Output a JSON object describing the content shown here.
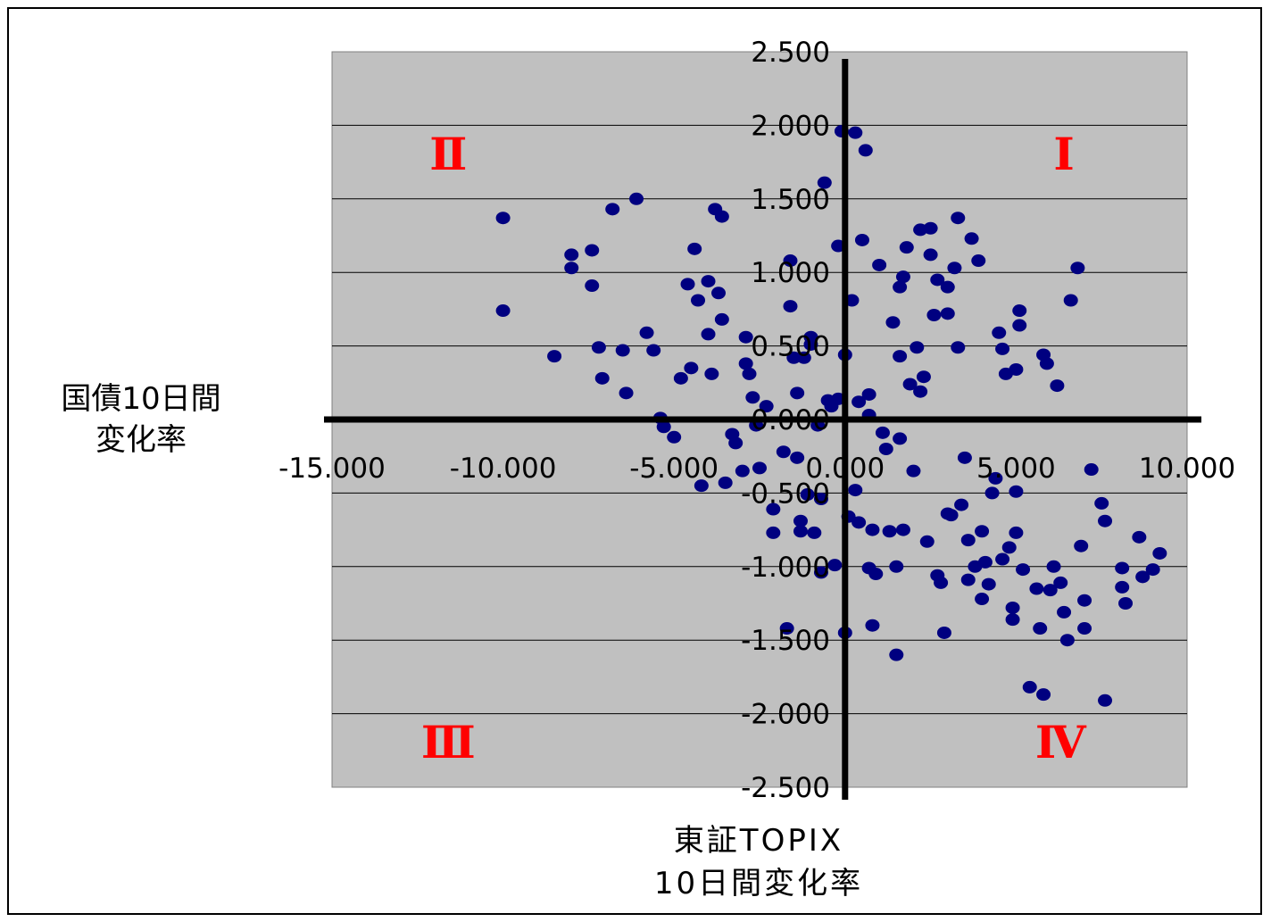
{
  "chart_data": {
    "type": "scatter",
    "title": "",
    "xlabel": "東証TOPIX\n10日間変化率",
    "xlabel_lines": [
      "東証TOPIX",
      "10日間変化率"
    ],
    "ylabel_lines": [
      "国債10日間",
      "変化率"
    ],
    "xlim": [
      -15,
      10
    ],
    "ylim": [
      -2.5,
      2.5
    ],
    "x_ticks": [
      "-15.000",
      "-10.000",
      "-5.000",
      "0.000",
      "5.000",
      "10.000"
    ],
    "y_ticks": [
      "2.500",
      "2.000",
      "1.500",
      "1.000",
      "0.500",
      "0.000",
      "-0.500",
      "-1.000",
      "-1.500",
      "-2.000",
      "-2.500"
    ],
    "grid": "horizontal",
    "plot_background": "#c0c0c0",
    "marker_color": "#000080",
    "quadrant_labels": [
      {
        "text": "Ⅰ",
        "x": 6.4,
        "y": 1.7
      },
      {
        "text": "Ⅱ",
        "x": -11.6,
        "y": 1.7
      },
      {
        "text": "Ⅲ",
        "x": -11.6,
        "y": -2.3
      },
      {
        "text": "Ⅳ",
        "x": 6.3,
        "y": -2.3
      }
    ],
    "quadrant_color": "#ff0000",
    "series": [
      {
        "points": [
          [
            -10.0,
            1.37
          ],
          [
            -10.0,
            0.74
          ],
          [
            -8.5,
            0.43
          ],
          [
            -8.0,
            1.12
          ],
          [
            -8.0,
            1.03
          ],
          [
            -7.4,
            1.15
          ],
          [
            -7.4,
            0.91
          ],
          [
            -7.2,
            0.49
          ],
          [
            -7.1,
            0.28
          ],
          [
            -6.8,
            1.43
          ],
          [
            -6.5,
            0.47
          ],
          [
            -6.4,
            0.18
          ],
          [
            -6.1,
            1.5
          ],
          [
            -5.8,
            0.59
          ],
          [
            -5.6,
            0.47
          ],
          [
            -5.4,
            0.01
          ],
          [
            -5.3,
            -0.05
          ],
          [
            -5.0,
            -0.12
          ],
          [
            -4.8,
            0.28
          ],
          [
            -4.6,
            0.92
          ],
          [
            -4.5,
            0.35
          ],
          [
            -4.4,
            1.16
          ],
          [
            -4.3,
            0.81
          ],
          [
            -4.2,
            -0.45
          ],
          [
            -4.0,
            0.58
          ],
          [
            -4.0,
            0.94
          ],
          [
            -3.9,
            0.31
          ],
          [
            -3.8,
            1.43
          ],
          [
            -3.6,
            1.38
          ],
          [
            -3.7,
            0.86
          ],
          [
            -3.6,
            0.68
          ],
          [
            -3.5,
            -0.43
          ],
          [
            -3.3,
            -0.1
          ],
          [
            -3.2,
            -0.16
          ],
          [
            -3.0,
            -0.35
          ],
          [
            -2.9,
            0.56
          ],
          [
            -2.9,
            0.38
          ],
          [
            -2.8,
            0.31
          ],
          [
            -2.7,
            0.15
          ],
          [
            -2.6,
            -0.04
          ],
          [
            -2.5,
            -0.33
          ],
          [
            -2.3,
            0.09
          ],
          [
            -2.1,
            -0.61
          ],
          [
            -2.1,
            -0.77
          ],
          [
            -1.8,
            -0.22
          ],
          [
            -1.7,
            -1.42
          ],
          [
            -1.6,
            1.08
          ],
          [
            -1.6,
            0.77
          ],
          [
            -1.5,
            0.42
          ],
          [
            -1.4,
            0.18
          ],
          [
            -1.4,
            -0.26
          ],
          [
            -1.3,
            -0.69
          ],
          [
            -1.3,
            -0.76
          ],
          [
            -1.2,
            0.42
          ],
          [
            -1.1,
            -0.51
          ],
          [
            -1.0,
            0.56
          ],
          [
            -1.0,
            0.51
          ],
          [
            -0.9,
            -0.77
          ],
          [
            -0.8,
            -0.04
          ],
          [
            -0.7,
            -1.04
          ],
          [
            -0.7,
            -0.54
          ],
          [
            -0.6,
            1.61
          ],
          [
            -0.5,
            0.13
          ],
          [
            -0.4,
            0.09
          ],
          [
            -0.3,
            -0.99
          ],
          [
            -0.2,
            1.18
          ],
          [
            -0.2,
            0.14
          ],
          [
            -0.1,
            1.96
          ],
          [
            0.0,
            -1.45
          ],
          [
            0.0,
            0.44
          ],
          [
            0.1,
            -0.66
          ],
          [
            0.2,
            0.81
          ],
          [
            0.3,
            1.95
          ],
          [
            0.3,
            -0.48
          ],
          [
            0.4,
            0.12
          ],
          [
            0.4,
            -0.7
          ],
          [
            0.5,
            1.22
          ],
          [
            0.6,
            1.83
          ],
          [
            0.7,
            0.17
          ],
          [
            0.7,
            0.03
          ],
          [
            0.7,
            -1.01
          ],
          [
            0.8,
            -1.4
          ],
          [
            0.8,
            -0.75
          ],
          [
            0.9,
            -1.05
          ],
          [
            1.0,
            1.05
          ],
          [
            1.1,
            -0.09
          ],
          [
            1.2,
            -0.2
          ],
          [
            1.3,
            -0.76
          ],
          [
            1.4,
            0.66
          ],
          [
            1.5,
            -1.0
          ],
          [
            1.5,
            -1.6
          ],
          [
            1.6,
            0.43
          ],
          [
            1.6,
            0.9
          ],
          [
            1.6,
            -0.13
          ],
          [
            1.7,
            0.97
          ],
          [
            1.7,
            -0.75
          ],
          [
            1.8,
            1.17
          ],
          [
            1.9,
            0.24
          ],
          [
            2.0,
            -0.35
          ],
          [
            2.1,
            0.49
          ],
          [
            2.2,
            1.29
          ],
          [
            2.2,
            0.19
          ],
          [
            2.3,
            0.29
          ],
          [
            2.4,
            -0.83
          ],
          [
            2.5,
            1.3
          ],
          [
            2.5,
            1.12
          ],
          [
            2.6,
            0.71
          ],
          [
            2.7,
            0.95
          ],
          [
            2.7,
            -1.06
          ],
          [
            2.8,
            -1.11
          ],
          [
            2.9,
            -1.45
          ],
          [
            3.0,
            -0.64
          ],
          [
            3.0,
            0.9
          ],
          [
            3.0,
            0.72
          ],
          [
            3.1,
            -0.65
          ],
          [
            3.2,
            1.03
          ],
          [
            3.3,
            1.37
          ],
          [
            3.3,
            0.49
          ],
          [
            3.4,
            -0.58
          ],
          [
            3.5,
            -0.26
          ],
          [
            3.6,
            -0.82
          ],
          [
            3.6,
            -1.09
          ],
          [
            3.7,
            1.23
          ],
          [
            3.8,
            -1.0
          ],
          [
            3.9,
            1.08
          ],
          [
            4.0,
            -0.76
          ],
          [
            4.0,
            -1.22
          ],
          [
            4.1,
            -0.97
          ],
          [
            4.2,
            -1.12
          ],
          [
            4.3,
            -0.5
          ],
          [
            4.4,
            -0.4
          ],
          [
            4.5,
            0.59
          ],
          [
            4.6,
            0.48
          ],
          [
            4.6,
            -0.95
          ],
          [
            4.7,
            0.31
          ],
          [
            4.8,
            -0.87
          ],
          [
            4.9,
            -1.28
          ],
          [
            4.9,
            -1.36
          ],
          [
            5.0,
            0.34
          ],
          [
            5.0,
            -0.49
          ],
          [
            5.0,
            -0.77
          ],
          [
            5.1,
            0.64
          ],
          [
            5.1,
            0.74
          ],
          [
            5.2,
            -1.02
          ],
          [
            5.4,
            -1.82
          ],
          [
            5.6,
            -1.15
          ],
          [
            5.7,
            -1.42
          ],
          [
            5.8,
            0.44
          ],
          [
            5.8,
            -1.87
          ],
          [
            5.9,
            0.38
          ],
          [
            6.0,
            -1.16
          ],
          [
            6.1,
            -1.0
          ],
          [
            6.2,
            0.23
          ],
          [
            6.3,
            -1.11
          ],
          [
            6.4,
            -1.31
          ],
          [
            6.5,
            -1.5
          ],
          [
            6.6,
            0.81
          ],
          [
            6.8,
            1.03
          ],
          [
            6.9,
            -0.86
          ],
          [
            7.0,
            -1.23
          ],
          [
            7.0,
            -1.42
          ],
          [
            7.2,
            -0.34
          ],
          [
            7.5,
            -0.57
          ],
          [
            7.6,
            -0.69
          ],
          [
            7.6,
            -1.91
          ],
          [
            8.1,
            -1.01
          ],
          [
            8.1,
            -1.14
          ],
          [
            8.2,
            -1.25
          ],
          [
            8.6,
            -0.8
          ],
          [
            8.7,
            -1.07
          ],
          [
            9.0,
            -1.02
          ],
          [
            9.2,
            -0.91
          ]
        ]
      }
    ]
  }
}
